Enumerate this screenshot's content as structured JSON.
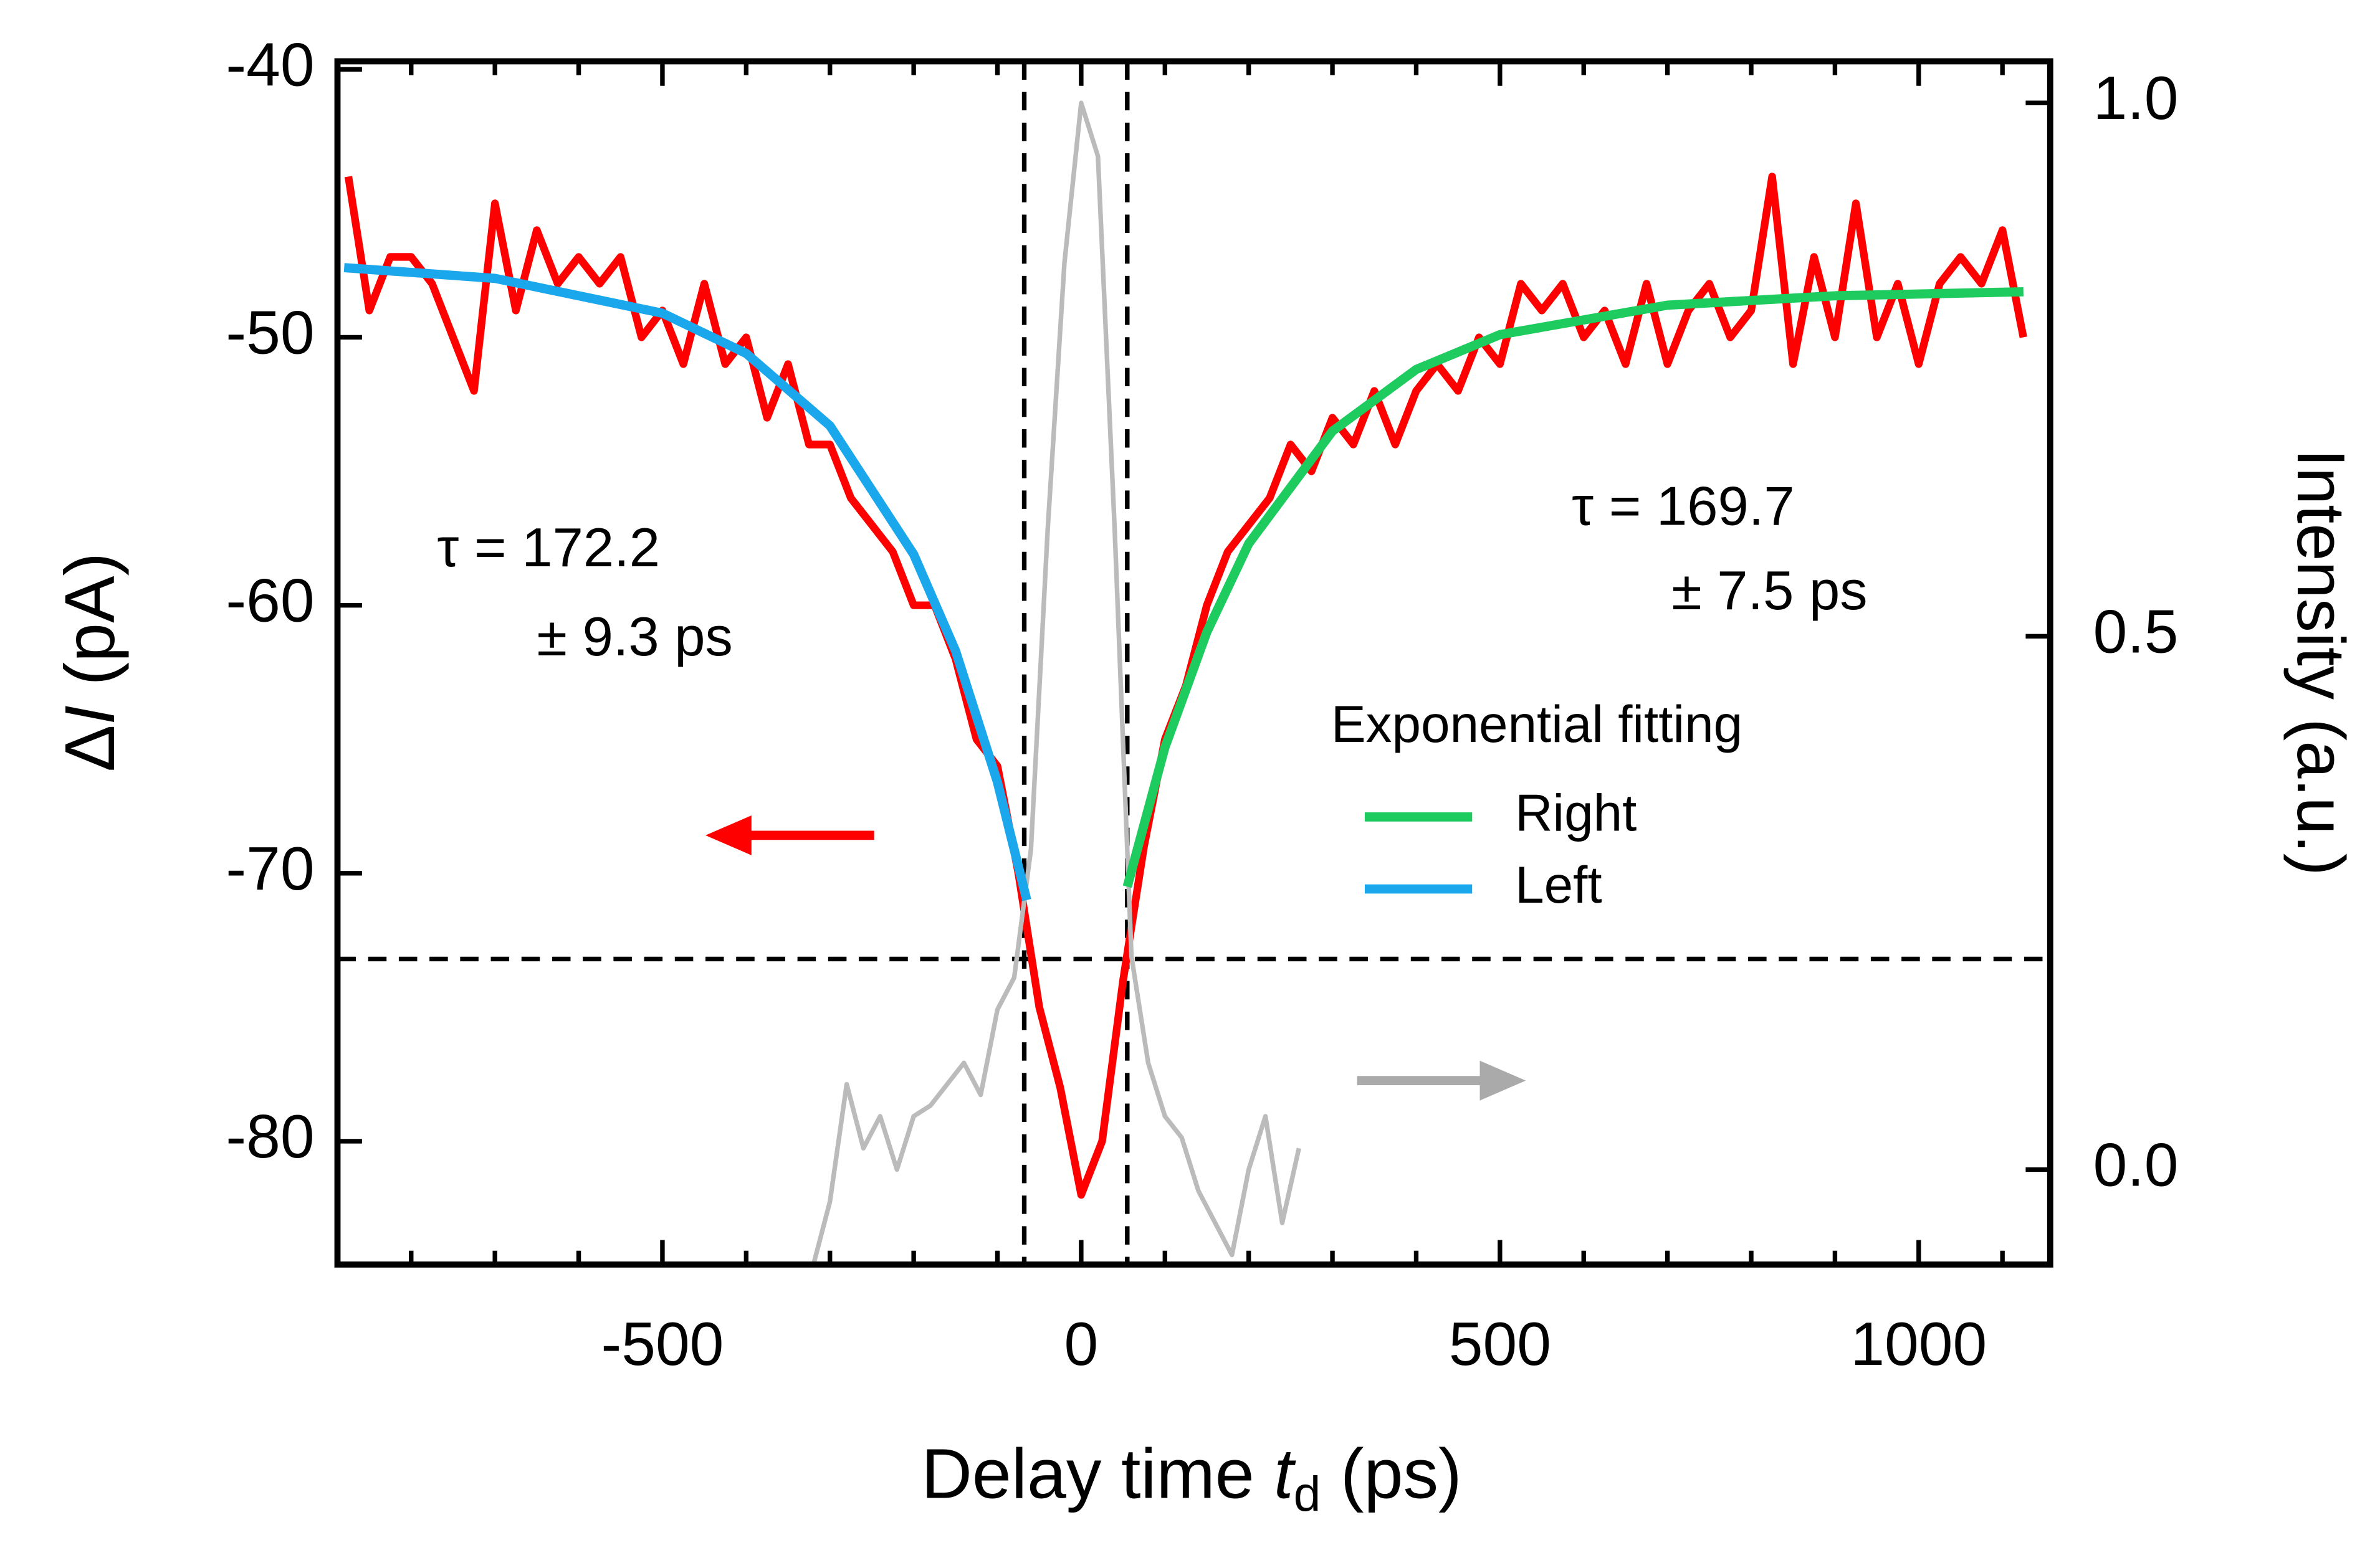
{
  "chart_data": {
    "type": "line",
    "xlabel": [
      "Delay time ",
      "t",
      "d",
      " (ps)"
    ],
    "ylabel": [
      "Δ",
      "I",
      " (pA)"
    ],
    "y2label": "Intensity (a.u.)",
    "xlim": [
      -888,
      1157
    ],
    "ylim": [
      -84.6,
      -39.7
    ],
    "y2lim": [
      -0.089,
      1.039
    ],
    "xticks": [
      -500,
      0,
      500,
      1000
    ],
    "xminorticks": [
      -800,
      -700,
      -600,
      -400,
      -300,
      -200,
      -100,
      100,
      200,
      300,
      400,
      600,
      700,
      800,
      900,
      1100
    ],
    "yticks": [
      -40,
      -50,
      -60,
      -70,
      -80
    ],
    "y2ticks": [
      {
        "value": 0,
        "label": "0.0"
      },
      {
        "value": 0.5,
        "label": "0.5"
      },
      {
        "value": 1,
        "label": "1.0"
      }
    ],
    "vlines": [
      -68,
      55
    ],
    "hline": -73.2,
    "legend_title": "Exponential fitting",
    "series": [
      {
        "color": "#ff0000",
        "width": 5,
        "x": [
          -875,
          -850,
          -825,
          -800,
          -775,
          -750,
          -725,
          -700,
          -675,
          -650,
          -625,
          -600,
          -575,
          -550,
          -525,
          -500,
          -475,
          -450,
          -425,
          -400,
          -375,
          -350,
          -325,
          -300,
          -275,
          -250,
          -225,
          -200,
          -175,
          -150,
          -125,
          -100,
          -75,
          -50,
          -25,
          0,
          25,
          50,
          75,
          100,
          125,
          150,
          175,
          200,
          225,
          250,
          275,
          300,
          325,
          350,
          375,
          400,
          425,
          450,
          475,
          500,
          525,
          550,
          575,
          600,
          625,
          650,
          675,
          700,
          725,
          750,
          775,
          800,
          825,
          850,
          875,
          900,
          925,
          950,
          975,
          1000,
          1025,
          1050,
          1075,
          1100,
          1125
        ],
        "values": [
          -44,
          -49,
          -47,
          -47,
          -48,
          -50,
          -52,
          -45,
          -49,
          -46,
          -48,
          -47,
          -48,
          -47,
          -50,
          -49,
          -51,
          -48,
          -51,
          -50,
          -53,
          -51,
          -54,
          -54,
          -56,
          -57,
          -58,
          -60,
          -60,
          -62,
          -65,
          -66,
          -70,
          -75,
          -78,
          -82,
          -80,
          -74,
          -69,
          -65,
          -63,
          -60,
          -58,
          -57,
          -56,
          -54,
          -55,
          -53,
          -54,
          -52,
          -54,
          -52,
          -51,
          -52,
          -50,
          -51,
          -48,
          -49,
          -48,
          -50,
          -49,
          -51,
          -48,
          -51,
          -49,
          -48,
          -50,
          -49,
          -44,
          -51,
          -47,
          -50,
          -45,
          -50,
          -48,
          -51,
          -48,
          -47,
          -48,
          -46,
          -50
        ]
      },
      {
        "color": "#bbbbbb",
        "width": 3,
        "axis": "y2",
        "x": [
          -320,
          -300,
          -280,
          -260,
          -240,
          -220,
          -200,
          -180,
          -160,
          -140,
          -120,
          -100,
          -80,
          -60,
          -40,
          -20,
          0,
          20,
          40,
          60,
          80,
          100,
          120,
          140,
          160,
          180,
          200,
          220,
          240,
          260
        ],
        "values": [
          -0.09,
          -0.03,
          0.08,
          0.02,
          0.05,
          0.0,
          0.05,
          0.06,
          0.08,
          0.1,
          0.07,
          0.15,
          0.18,
          0.3,
          0.6,
          0.85,
          1.0,
          0.95,
          0.6,
          0.2,
          0.1,
          0.05,
          0.03,
          -0.02,
          -0.05,
          -0.08,
          0.0,
          0.05,
          -0.05,
          0.02
        ]
      },
      {
        "name": "Right",
        "color": "#1ecb5e",
        "width": 6,
        "x": [
          55,
          100,
          150,
          200,
          300,
          400,
          500,
          700,
          900,
          1125
        ],
        "values": [
          -70.5,
          -65.3,
          -61.0,
          -57.7,
          -53.5,
          -51.2,
          -49.9,
          -48.8,
          -48.45,
          -48.3
        ]
      },
      {
        "name": "Left",
        "color": "#1aa7ec",
        "width": 6,
        "x": [
          -880,
          -700,
          -500,
          -400,
          -300,
          -200,
          -150,
          -100,
          -65
        ],
        "values": [
          -47.4,
          -47.8,
          -49.1,
          -50.6,
          -53.3,
          -58.1,
          -61.7,
          -66.6,
          -71
        ]
      }
    ],
    "annotations": [
      "τ = 172.2",
      "± 9.3 ps",
      "τ = 169.7",
      "± 7.5 ps"
    ]
  }
}
